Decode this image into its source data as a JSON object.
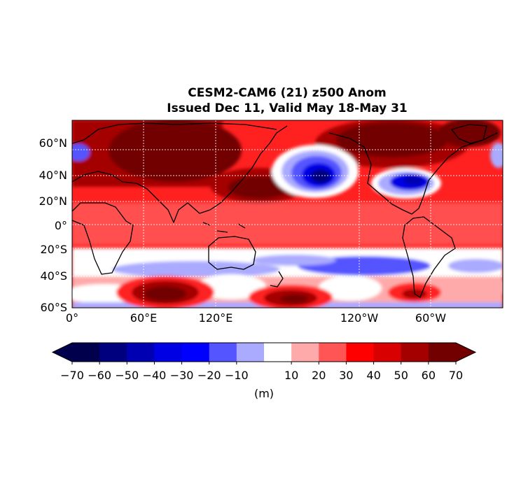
{
  "title": {
    "line1": "CESM2-CAM6 (21) z500 Anom",
    "line2": "Issued Dec 11, Valid May 18-May 31"
  },
  "map": {
    "lat_labels": [
      "60°N",
      "40°N",
      "20°N",
      "0°",
      "20°S",
      "40°S",
      "60°S"
    ],
    "lon_labels": [
      "0°",
      "60°E",
      "120°E",
      "120°W",
      "60°W"
    ]
  },
  "colorbar": {
    "ticks": [
      "−70",
      "−60",
      "−50",
      "−40",
      "−30",
      "−20",
      "−10",
      "10",
      "20",
      "30",
      "40",
      "50",
      "60",
      "70"
    ],
    "colors": [
      "#00004c",
      "#00007f",
      "#0000b2",
      "#0000e5",
      "#0000ff",
      "#5555ff",
      "#aaaaff",
      "#ffffff",
      "#ffaaaa",
      "#ff5555",
      "#ff0000",
      "#d80000",
      "#a50000",
      "#720000"
    ],
    "unit_label": "(m)"
  }
}
